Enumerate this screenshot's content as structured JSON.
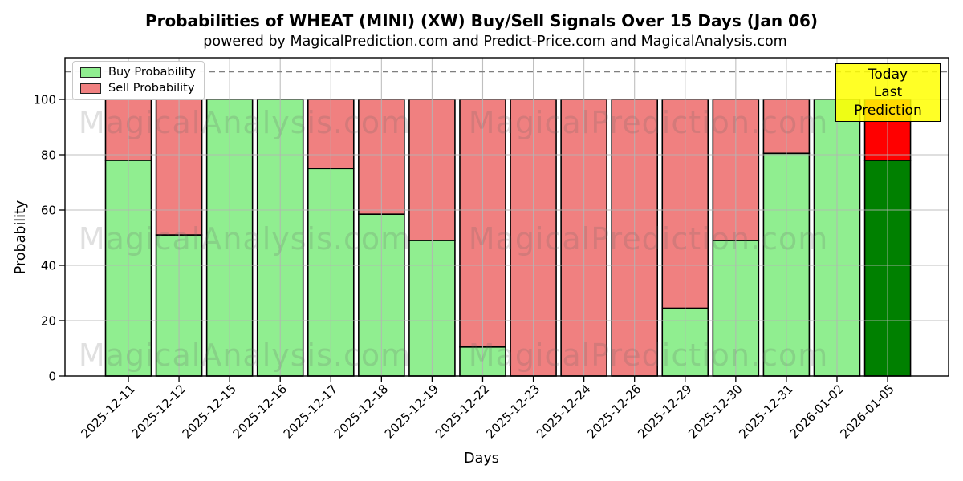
{
  "header": {
    "title": "Probabilities of WHEAT (MINI) (XW) Buy/Sell Signals Over 15 Days (Jan 06)",
    "subtitle": "powered by MagicalPrediction.com and Predict-Price.com and MagicalAnalysis.com"
  },
  "chart_data": {
    "type": "bar",
    "stacked": true,
    "title": "Probabilities of WHEAT (MINI) (XW) Buy/Sell Signals Over 15 Days (Jan 06)",
    "subtitle": "powered by MagicalPrediction.com and Predict-Price.com and MagicalAnalysis.com",
    "xlabel": "Days",
    "ylabel": "Probability",
    "ylim": [
      0,
      115
    ],
    "yticks": [
      0,
      20,
      40,
      60,
      80,
      100
    ],
    "grid": true,
    "dashed_threshold_y": 110,
    "categories": [
      "2025-12-11",
      "2025-12-12",
      "2025-12-15",
      "2025-12-16",
      "2025-12-17",
      "2025-12-18",
      "2025-12-19",
      "2025-12-22",
      "2025-12-23",
      "2025-12-24",
      "2025-12-26",
      "2025-12-29",
      "2025-12-30",
      "2025-12-31",
      "2026-01-02",
      "2026-01-05"
    ],
    "series": [
      {
        "name": "Buy Probability",
        "color": "#90ee90",
        "values": [
          78,
          51,
          100,
          100,
          75,
          58.5,
          49,
          10.5,
          0,
          0,
          0,
          24.5,
          49,
          80.5,
          100,
          78
        ]
      },
      {
        "name": "Sell Probability",
        "color": "#f08080",
        "values": [
          22,
          49,
          0,
          0,
          25,
          41.5,
          51,
          89.5,
          100,
          100,
          100,
          75.5,
          51,
          19.5,
          0,
          22
        ]
      }
    ],
    "last_bar_highlight": {
      "buy_color": "#008000",
      "sell_color": "#ff0000"
    },
    "legend_position": "upper-left",
    "annotation": {
      "line1": "Today",
      "line2": "Last Prediction",
      "bg_color": "#ffff00"
    },
    "watermarks": {
      "left_text": "MagicalAnalysis.com",
      "right_text": "MagicalPrediction.com"
    },
    "colors": {
      "bar_edge": "#000000",
      "grid_line": "#b4b4b4",
      "dashed_line": "#7f7f7f",
      "watermark": "rgba(102,102,102,0.20)"
    }
  }
}
